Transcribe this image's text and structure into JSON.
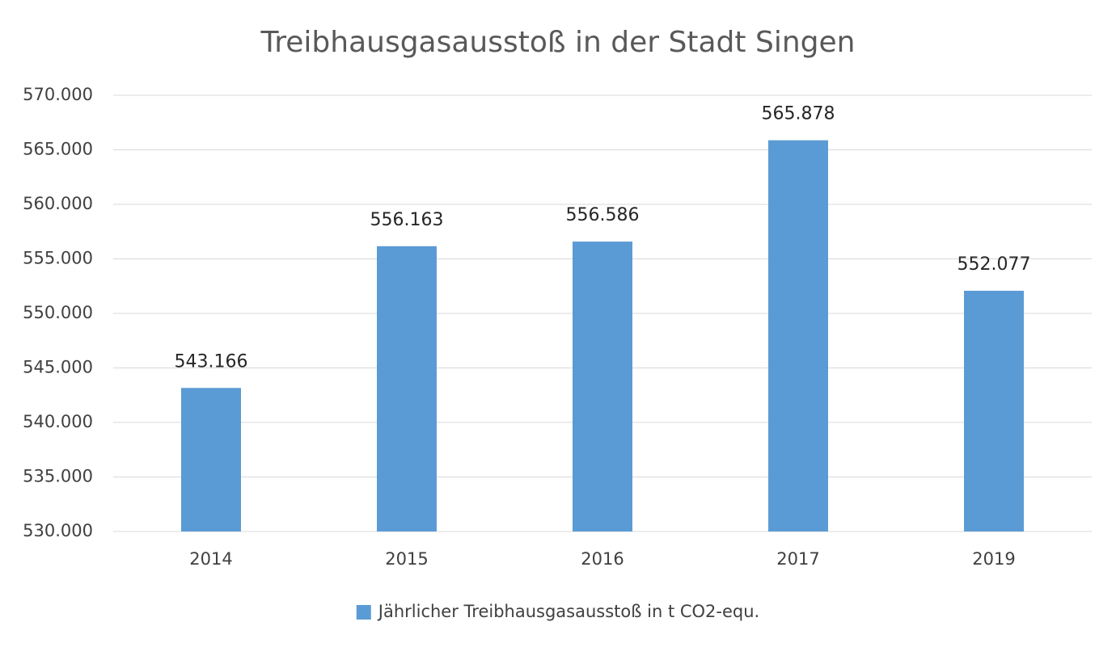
{
  "chart_data": {
    "type": "bar",
    "title": "Treibhausgasausstoß in der Stadt Singen",
    "categories": [
      "2014",
      "2015",
      "2016",
      "2017",
      "2019"
    ],
    "series": [
      {
        "name": "Jährlicher Treibhausgasausstoß in t CO2-equ.",
        "color": "#5b9bd5",
        "values": [
          543166,
          556163,
          556586,
          565878,
          552077
        ],
        "value_labels": [
          "543.166",
          "556.163",
          "556.586",
          "565.878",
          "552.077"
        ]
      }
    ],
    "ylim": [
      530000,
      570000
    ],
    "yticks": [
      {
        "value": 530000,
        "label": "530.000"
      },
      {
        "value": 535000,
        "label": "535.000"
      },
      {
        "value": 540000,
        "label": "540.000"
      },
      {
        "value": 545000,
        "label": "545.000"
      },
      {
        "value": 550000,
        "label": "550.000"
      },
      {
        "value": 555000,
        "label": "555.000"
      },
      {
        "value": 560000,
        "label": "560.000"
      },
      {
        "value": 565000,
        "label": "565.000"
      },
      {
        "value": 570000,
        "label": "570.000"
      }
    ],
    "grid": true,
    "legend": "bottom"
  }
}
